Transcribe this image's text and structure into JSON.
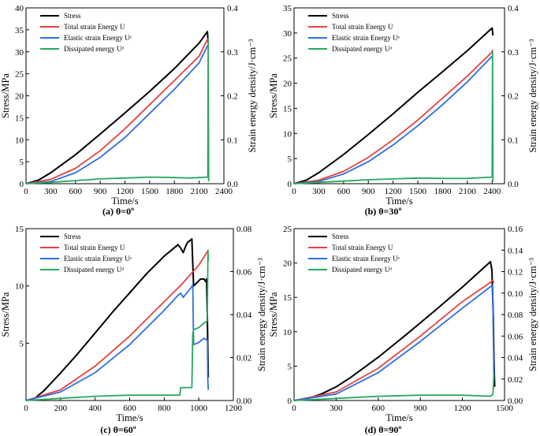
{
  "chart_data": [
    {
      "type": "line",
      "caption": "(a) θ=0º",
      "xlabel": "Time/s",
      "ylabel": "Stress/MPa",
      "ylabel_right": "Strain energy density/J·cm⁻³",
      "xlim": [
        0,
        2400
      ],
      "ylim": [
        0,
        40
      ],
      "ylim_right": [
        0,
        0.4
      ],
      "xticks": [
        "0",
        "300",
        "600",
        "900",
        "1200",
        "1500",
        "1800",
        "2100",
        "2400"
      ],
      "yticks": [
        "0",
        "5",
        "10",
        "15",
        "20",
        "25",
        "30",
        "35",
        "40"
      ],
      "yticks_right": [
        "0.0",
        "0.1",
        "0.2",
        "0.3",
        "0.4"
      ],
      "legend": [
        "Stress",
        "Total strain Energy U",
        "Elastic strain Energy Uᵉ",
        "Dissipated energy Uᵈ"
      ],
      "series": [
        {
          "name": "Stress",
          "axis": "left",
          "color": "#000000",
          "x": [
            0,
            150,
            300,
            600,
            900,
            1200,
            1500,
            1800,
            2100,
            2200,
            2210
          ],
          "y": [
            0,
            0.8,
            2.5,
            6.6,
            11.3,
            16.1,
            21.0,
            26.2,
            32.0,
            34.6,
            32.0
          ]
        },
        {
          "name": "Total strain Energy U",
          "axis": "right",
          "color": "#e8413d",
          "x": [
            0,
            300,
            600,
            900,
            1200,
            1500,
            1800,
            2100,
            2205
          ],
          "y": [
            0,
            0.01,
            0.035,
            0.075,
            0.125,
            0.18,
            0.235,
            0.29,
            0.33
          ]
        },
        {
          "name": "Elastic strain Energy Uᵉ",
          "axis": "right",
          "color": "#2d6ee0",
          "x": [
            0,
            300,
            600,
            900,
            1200,
            1500,
            1800,
            2100,
            2205
          ],
          "y": [
            0,
            0.005,
            0.025,
            0.06,
            0.105,
            0.16,
            0.215,
            0.275,
            0.315
          ]
        },
        {
          "name": "Dissipated energy Uᵈ",
          "axis": "right",
          "color": "#27a85c",
          "x": [
            0,
            300,
            600,
            900,
            1200,
            1500,
            1800,
            2000,
            2100,
            2205,
            2210,
            2215
          ],
          "y": [
            0,
            0.003,
            0.007,
            0.011,
            0.013,
            0.015,
            0.014,
            0.013,
            0.014,
            0.015,
            0.33,
            0.005
          ]
        }
      ]
    },
    {
      "type": "line",
      "caption": "(b) θ=30º",
      "xlabel": "Time/s",
      "ylabel": "Stress/MPa",
      "ylabel_right": "Strain energy density/J·cm⁻³",
      "xlim": [
        0,
        2550
      ],
      "ylim": [
        0,
        35
      ],
      "ylim_right": [
        0,
        0.4
      ],
      "xticks": [
        "0",
        "300",
        "600",
        "900",
        "1200",
        "1500",
        "1800",
        "2100",
        "2400"
      ],
      "yticks": [
        "0",
        "5",
        "10",
        "15",
        "20",
        "25",
        "30",
        "35"
      ],
      "yticks_right": [
        "0.0",
        "0.1",
        "0.2",
        "0.3",
        "0.4"
      ],
      "legend": [
        "Stress",
        "Total strain Energy U",
        "Elastic strain Energy Uᵉ",
        "Dissipated energy Uᵈ"
      ],
      "series": [
        {
          "name": "Stress",
          "axis": "left",
          "color": "#000000",
          "x": [
            0,
            150,
            300,
            600,
            900,
            1200,
            1500,
            1800,
            2100,
            2400,
            2410
          ],
          "y": [
            0,
            0.7,
            2.2,
            5.8,
            9.8,
            13.9,
            18.2,
            22.3,
            26.5,
            31.0,
            29.5
          ]
        },
        {
          "name": "Total strain Energy U",
          "axis": "right",
          "color": "#e8413d",
          "x": [
            0,
            300,
            600,
            900,
            1200,
            1500,
            1800,
            2100,
            2400,
            2405
          ],
          "y": [
            0,
            0.008,
            0.028,
            0.06,
            0.1,
            0.145,
            0.195,
            0.245,
            0.3,
            0.305
          ]
        },
        {
          "name": "Elastic strain Energy Uᵉ",
          "axis": "right",
          "color": "#2d6ee0",
          "x": [
            0,
            300,
            600,
            900,
            1200,
            1500,
            1800,
            2100,
            2400,
            2405
          ],
          "y": [
            0,
            0.005,
            0.022,
            0.05,
            0.088,
            0.132,
            0.18,
            0.232,
            0.29,
            0.29
          ]
        },
        {
          "name": "Dissipated energy Uᵈ",
          "axis": "right",
          "color": "#27a85c",
          "x": [
            0,
            300,
            600,
            900,
            1200,
            1500,
            1800,
            2100,
            2400,
            2405,
            2410
          ],
          "y": [
            0,
            0.003,
            0.006,
            0.009,
            0.011,
            0.013,
            0.012,
            0.012,
            0.015,
            0.3,
            0.005
          ]
        }
      ]
    },
    {
      "type": "line",
      "caption": "(c) θ=60º",
      "xlabel": "Time/s",
      "ylabel": "Stress/MPa",
      "ylabel_right": "Strain energy density/J·cm⁻³",
      "xlim": [
        0,
        1200
      ],
      "ylim": [
        0,
        15
      ],
      "ylim_right": [
        0,
        0.08
      ],
      "xticks": [
        "0",
        "200",
        "400",
        "600",
        "800",
        "1000",
        "1200"
      ],
      "yticks": [
        "5",
        "10",
        "15"
      ],
      "yticks_right": [
        "0.00",
        "0.02",
        "0.04",
        "0.06",
        "0.08"
      ],
      "legend": [
        "Stress",
        "Total strain Energy U",
        "Elastic strain Energy Uᵉ",
        "Dissipated energy Uᵈ"
      ],
      "series": [
        {
          "name": "Stress",
          "axis": "left",
          "color": "#000000",
          "x": [
            0,
            50,
            100,
            200,
            300,
            400,
            500,
            600,
            700,
            800,
            880,
            895,
            910,
            925,
            935,
            960,
            970,
            990,
            1010,
            1030,
            1040,
            1045,
            1050,
            1055
          ],
          "y": [
            0,
            0.2,
            0.8,
            2.4,
            4.1,
            5.9,
            7.7,
            9.4,
            11.1,
            12.6,
            13.6,
            13.3,
            12.9,
            13.5,
            13.8,
            14.1,
            10.0,
            10.3,
            10.6,
            10.6,
            10.4,
            10.6,
            7.0,
            2.0
          ]
        },
        {
          "name": "Total strain Energy U",
          "axis": "right",
          "color": "#e8413d",
          "x": [
            0,
            200,
            400,
            600,
            800,
            900,
            1000,
            1055
          ],
          "y": [
            0,
            0.005,
            0.016,
            0.03,
            0.046,
            0.054,
            0.063,
            0.07
          ]
        },
        {
          "name": "Elastic strain Energy Uᵉ",
          "axis": "right",
          "color": "#2d6ee0",
          "x": [
            0,
            200,
            400,
            600,
            800,
            880,
            895,
            910,
            960,
            965,
            970,
            1000,
            1030,
            1050,
            1052,
            1055
          ],
          "y": [
            0,
            0.004,
            0.013,
            0.026,
            0.042,
            0.049,
            0.05,
            0.048,
            0.053,
            0.054,
            0.026,
            0.027,
            0.029,
            0.028,
            0.01,
            0.005
          ]
        },
        {
          "name": "Dissipated energy Uᵈ",
          "axis": "right",
          "color": "#27a85c",
          "x": [
            0,
            200,
            400,
            600,
            800,
            890,
            895,
            960,
            965,
            970,
            1000,
            1030,
            1048,
            1050,
            1053,
            1055
          ],
          "y": [
            0,
            0.001,
            0.002,
            0.0025,
            0.0025,
            0.0025,
            0.006,
            0.006,
            0.031,
            0.033,
            0.034,
            0.036,
            0.037,
            0.043,
            0.07,
            0.065
          ]
        }
      ]
    },
    {
      "type": "line",
      "caption": "(d) θ=90º",
      "xlabel": "Time/s",
      "ylabel": "Stress/MPa",
      "ylabel_right": "Strain energy density/J·cm⁻³",
      "xlim": [
        0,
        1500
      ],
      "ylim": [
        0,
        25
      ],
      "ylim_right": [
        0,
        0.16
      ],
      "xticks": [
        "0",
        "300",
        "600",
        "900",
        "1200",
        "1500"
      ],
      "yticks": [
        "0",
        "5",
        "10",
        "15",
        "20",
        "25"
      ],
      "yticks_right": [
        "0.00",
        "0.02",
        "0.04",
        "0.06",
        "0.08",
        "0.10",
        "0.12",
        "0.14",
        "0.16"
      ],
      "legend": [
        "Stress",
        "Total strain Energy U",
        "Elastic strain Energy Uᵉ",
        "Dissipated energy Uᵈ"
      ],
      "series": [
        {
          "name": "Stress",
          "axis": "left",
          "color": "#000000",
          "x": [
            0,
            100,
            200,
            300,
            400,
            600,
            800,
            1000,
            1200,
            1400,
            1410,
            1420,
            1425,
            1430
          ],
          "y": [
            0,
            0.3,
            1.0,
            2.0,
            3.3,
            6.3,
            9.6,
            13.0,
            16.5,
            20.2,
            19.0,
            12.0,
            6.0,
            2.0
          ]
        },
        {
          "name": "Total strain Energy U",
          "axis": "right",
          "color": "#e8413d",
          "x": [
            0,
            300,
            600,
            900,
            1200,
            1400,
            1415,
            1425
          ],
          "y": [
            0,
            0.008,
            0.03,
            0.06,
            0.092,
            0.11,
            0.112,
            0.11
          ]
        },
        {
          "name": "Elastic strain Energy Uᵉ",
          "axis": "right",
          "color": "#2d6ee0",
          "x": [
            0,
            300,
            600,
            900,
            1200,
            1400,
            1415,
            1425
          ],
          "y": [
            0,
            0.006,
            0.026,
            0.055,
            0.086,
            0.106,
            0.107,
            0.02
          ]
        },
        {
          "name": "Dissipated energy Uᵈ",
          "axis": "right",
          "color": "#27a85c",
          "x": [
            0,
            300,
            600,
            900,
            1200,
            1400,
            1418,
            1425
          ],
          "y": [
            0,
            0.002,
            0.004,
            0.005,
            0.005,
            0.004,
            0.006,
            0.025
          ]
        }
      ]
    }
  ]
}
